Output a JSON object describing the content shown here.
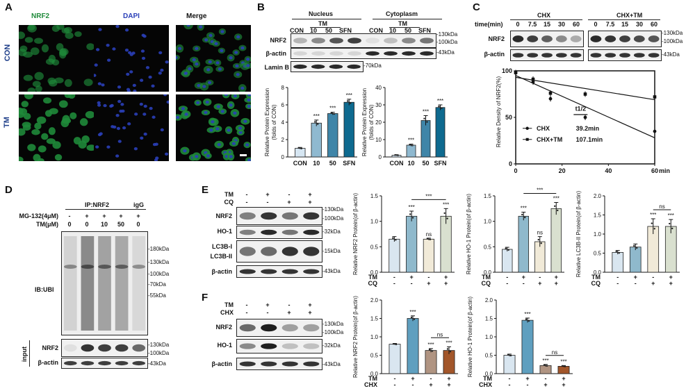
{
  "panelA": {
    "label": "A",
    "channels": [
      "NRF2",
      "DAPI",
      "Merge"
    ],
    "rows": [
      "CON",
      "TM"
    ],
    "colors": {
      "nrf2": "#1f8a3a",
      "dapi": "#2a3fb8",
      "rowlabel": "#1f3f8a"
    }
  },
  "panelB": {
    "label": "B",
    "groups": [
      "Nucleus",
      "Cytoplasm"
    ],
    "tm_label": "TM",
    "lanes": [
      "CON",
      "10",
      "50",
      "SFN"
    ],
    "rows": [
      "NRF2",
      "β-actin",
      "Lamin B"
    ],
    "kda": [
      "-130kDa",
      "-100kDa",
      "-43kDa",
      "-70kDa"
    ]
  },
  "panelC": {
    "label": "C",
    "time_label": "time(min)",
    "groups": [
      "CHX",
      "CHX+TM"
    ],
    "times": [
      "0",
      "7.5",
      "15",
      "30",
      "60"
    ],
    "rows": [
      "NRF2",
      "β-actin"
    ],
    "kda": [
      "-130kDa",
      "-100kDa",
      "-43kDa"
    ],
    "half_life_label": "t1/2",
    "legend": [
      {
        "name": "CHX",
        "half_life": "39.2min"
      },
      {
        "name": "CHX+TM",
        "half_life": "107.1min"
      }
    ]
  },
  "panelD": {
    "label": "D",
    "ip_label": "IP:NRF2",
    "igg_label": "igG",
    "conditions": [
      {
        "label": "MG-132(4μM)",
        "values": [
          "-",
          "+",
          "+",
          "+",
          "+"
        ]
      },
      {
        "label": "TM(μM)",
        "values": [
          "0",
          "0",
          "10",
          "50",
          "0"
        ]
      }
    ],
    "ib_label": "IB:UBI",
    "input_label": "input",
    "rows": [
      "NRF2",
      "β-actin"
    ],
    "kda": [
      "-180kDa",
      "-130kDa",
      "-100kDa",
      "-70kDa",
      "-55kDa",
      "-130kDa",
      "-100kDa",
      "-43kDa"
    ]
  },
  "panelE": {
    "label": "E",
    "conditions": [
      {
        "label": "TM",
        "values": [
          "-",
          "+",
          "-",
          "+"
        ]
      },
      {
        "label": "CQ",
        "values": [
          "-",
          "-",
          "+",
          "+"
        ]
      }
    ],
    "rows": [
      "NRF2",
      "HO-1",
      "LC3B-I",
      "LC3B-II",
      "β-actin"
    ],
    "kda": [
      "-130kDa",
      "-100kDa",
      "-32kDa",
      "-15kDa",
      "-43kDa"
    ]
  },
  "panelF": {
    "label": "F",
    "conditions": [
      {
        "label": "TM",
        "values": [
          "-",
          "+",
          "-",
          "+"
        ]
      },
      {
        "label": "CHX",
        "values": [
          "-",
          "-",
          "+",
          "+"
        ]
      }
    ],
    "rows": [
      "NRF2",
      "HO-1",
      "β-actin"
    ],
    "kda": [
      "-130kDa",
      "-100kDa",
      "-32kDa",
      "-43kDa"
    ]
  },
  "chart_data": [
    {
      "id": "B-nucleus",
      "type": "bar",
      "categories": [
        "CON",
        "10",
        "50",
        "SFN"
      ],
      "values": [
        1.0,
        3.9,
        5.0,
        6.3
      ],
      "errors": [
        0.1,
        0.35,
        0.15,
        0.35
      ],
      "significance": [
        "",
        "***",
        "***",
        "***"
      ],
      "colors": [
        "#d6e6f2",
        "#8fb9d0",
        "#3f85a8",
        "#0e6a8f"
      ],
      "ylabel": "Relative Protein Expression\n(folds of CON)",
      "ylim": [
        0,
        8
      ],
      "yticks": [
        0,
        2,
        4,
        6,
        8
      ]
    },
    {
      "id": "B-cytoplasm",
      "type": "bar",
      "categories": [
        "CON",
        "10",
        "50",
        "SFN"
      ],
      "values": [
        1.0,
        6.8,
        21.0,
        28.5
      ],
      "errors": [
        0.3,
        0.6,
        2.8,
        1.5
      ],
      "significance": [
        "",
        "***",
        "***",
        "***"
      ],
      "colors": [
        "#d6e6f2",
        "#8fb9d0",
        "#3f85a8",
        "#0e6a8f"
      ],
      "ylabel": "Relative Protein Expression\n(folds of CON)",
      "ylim": [
        0,
        40
      ],
      "yticks": [
        0,
        10,
        20,
        30,
        40
      ]
    },
    {
      "id": "C-decay",
      "type": "scatter",
      "ylabel": "Relative Density of NRF2(%)",
      "xlabel": "min",
      "xlim": [
        0,
        60
      ],
      "ylim": [
        0,
        100
      ],
      "xticks": [
        0,
        20,
        40,
        60
      ],
      "yticks": [
        0,
        50,
        100
      ],
      "series": [
        {
          "name": "CHX",
          "x": [
            0,
            7.5,
            15,
            30,
            60
          ],
          "y": [
            98,
            88,
            70,
            50,
            35
          ],
          "fit": [
            [
              0,
              95
            ],
            [
              60,
              28
            ]
          ]
        },
        {
          "name": "CHX+TM",
          "x": [
            0,
            7.5,
            15,
            30,
            60
          ],
          "y": [
            98,
            91,
            76,
            75,
            72
          ],
          "fit": [
            [
              0,
              93
            ],
            [
              60,
              69
            ]
          ]
        }
      ]
    },
    {
      "id": "E-nrf2",
      "type": "bar",
      "values": [
        0.65,
        1.1,
        0.65,
        1.1
      ],
      "errors": [
        0.05,
        0.1,
        0.02,
        0.15
      ],
      "significance": [
        "",
        "***",
        "ns",
        "***"
      ],
      "bracket": {
        "from": 1,
        "to": 3,
        "label": "***"
      },
      "colors": [
        "#d9e6f0",
        "#8fb9cc",
        "#f1ead8",
        "#d9e0cf"
      ],
      "ylabel": "Relative NRF2 Protein(of β-actin)",
      "ylim": [
        0,
        1.5
      ],
      "yticks": [
        "0.0",
        "0.5",
        "1.0",
        "1.5"
      ],
      "conditions": [
        {
          "label": "TM",
          "values": [
            "-",
            "+",
            "-",
            "+"
          ]
        },
        {
          "label": "CQ",
          "values": [
            "-",
            "-",
            "+",
            "+"
          ]
        }
      ]
    },
    {
      "id": "E-ho1",
      "type": "bar",
      "values": [
        0.45,
        1.1,
        0.6,
        1.25
      ],
      "errors": [
        0.04,
        0.08,
        0.1,
        0.12
      ],
      "significance": [
        "",
        "***",
        "ns",
        "***"
      ],
      "bracket": {
        "from": 1,
        "to": 3,
        "label": "***"
      },
      "colors": [
        "#d9e6f0",
        "#8fb9cc",
        "#f1ead8",
        "#d9e0cf"
      ],
      "ylabel": "Relative HO-1 Protein(of β-actin)",
      "ylim": [
        0,
        1.5
      ],
      "yticks": [
        "0.0",
        "0.5",
        "1.0",
        "1.5"
      ],
      "conditions": [
        {
          "label": "TM",
          "values": [
            "-",
            "+",
            "-",
            "+"
          ]
        },
        {
          "label": "CQ",
          "values": [
            "-",
            "-",
            "+",
            "+"
          ]
        }
      ]
    },
    {
      "id": "E-lc3b",
      "type": "bar",
      "values": [
        0.52,
        0.66,
        1.2,
        1.2
      ],
      "errors": [
        0.05,
        0.08,
        0.2,
        0.18
      ],
      "significance": [
        "",
        "",
        "***",
        "***"
      ],
      "bracket": {
        "from": 2,
        "to": 3,
        "label": "ns"
      },
      "colors": [
        "#d9e6f0",
        "#8fb9cc",
        "#f1ead8",
        "#d9e0cf"
      ],
      "ylabel": "Relative LC3B-II Protein(of β-actin)",
      "ylim": [
        0,
        2.0
      ],
      "yticks": [
        "0.0",
        "0.5",
        "1.0",
        "1.5",
        "2.0"
      ],
      "conditions": [
        {
          "label": "TM",
          "values": [
            "-",
            "+",
            "-",
            "+"
          ]
        },
        {
          "label": "CQ",
          "values": [
            "-",
            "-",
            "+",
            "+"
          ]
        }
      ]
    },
    {
      "id": "F-nrf2",
      "type": "bar",
      "values": [
        0.8,
        1.5,
        0.63,
        0.63
      ],
      "errors": [
        0.02,
        0.07,
        0.05,
        0.1
      ],
      "significance": [
        "",
        "***",
        "***",
        "***"
      ],
      "bracket": {
        "from": 2,
        "to": 3,
        "label": "ns"
      },
      "colors": [
        "#d9e6f0",
        "#5f9fbf",
        "#b09482",
        "#a2562a"
      ],
      "ylabel": "Relative NRF2 Protein(of β-actin)",
      "ylim": [
        0,
        2.0
      ],
      "yticks": [
        "0.0",
        "0.5",
        "1.0",
        "1.5",
        "2.0"
      ],
      "conditions": [
        {
          "label": "TM",
          "values": [
            "-",
            "+",
            "-",
            "+"
          ]
        },
        {
          "label": "CHX",
          "values": [
            "-",
            "-",
            "+",
            "+"
          ]
        }
      ]
    },
    {
      "id": "F-ho1",
      "type": "bar",
      "values": [
        0.5,
        1.45,
        0.22,
        0.2
      ],
      "errors": [
        0.03,
        0.06,
        0.03,
        0.02
      ],
      "significance": [
        "",
        "***",
        "***",
        "***"
      ],
      "bracket": {
        "from": 2,
        "to": 3,
        "label": "ns"
      },
      "colors": [
        "#d9e6f0",
        "#5f9fbf",
        "#b09482",
        "#a2562a"
      ],
      "ylabel": "Relative HO-1 Protein(of β-actin)",
      "ylim": [
        0,
        2.0
      ],
      "yticks": [
        "0.0",
        "0.5",
        "1.0",
        "1.5",
        "2.0"
      ],
      "conditions": [
        {
          "label": "TM",
          "values": [
            "-",
            "+",
            "-",
            "+"
          ]
        },
        {
          "label": "CHX",
          "values": [
            "-",
            "-",
            "+",
            "+"
          ]
        }
      ]
    }
  ]
}
